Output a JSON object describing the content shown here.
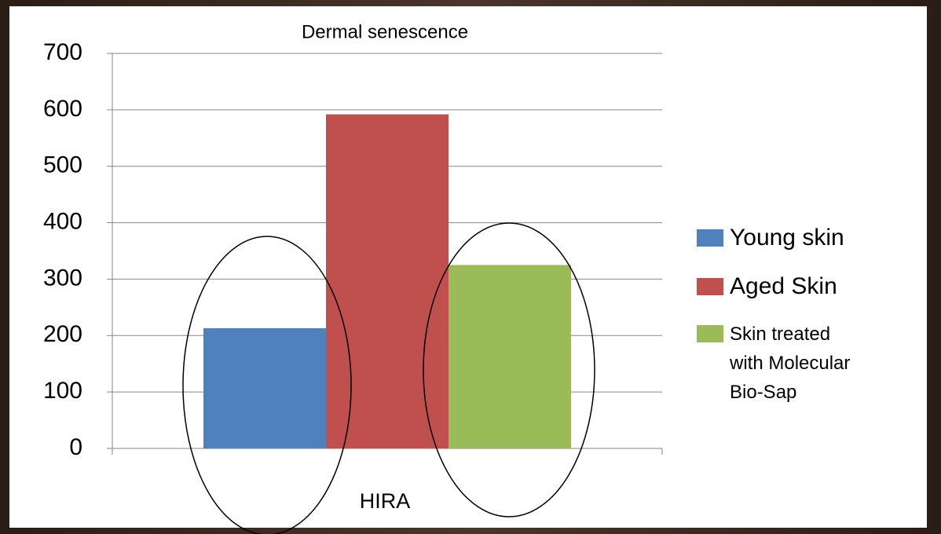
{
  "chart_data": {
    "type": "bar",
    "title": "Dermal senescence",
    "categories": [
      "HIRA"
    ],
    "series": [
      {
        "name": "Young skin",
        "color": "#4f81bd",
        "values": [
          213
        ]
      },
      {
        "name": "Aged Skin",
        "color": "#c0504d",
        "values": [
          592
        ]
      },
      {
        "name": "Skin treated with Molecular Bio-Sap",
        "color": "#9bbb59",
        "values": [
          325
        ]
      }
    ],
    "ylim": [
      0,
      700
    ],
    "yticks": [
      0,
      100,
      200,
      300,
      400,
      500,
      600,
      700
    ],
    "grid": true,
    "legend": "right"
  }
}
